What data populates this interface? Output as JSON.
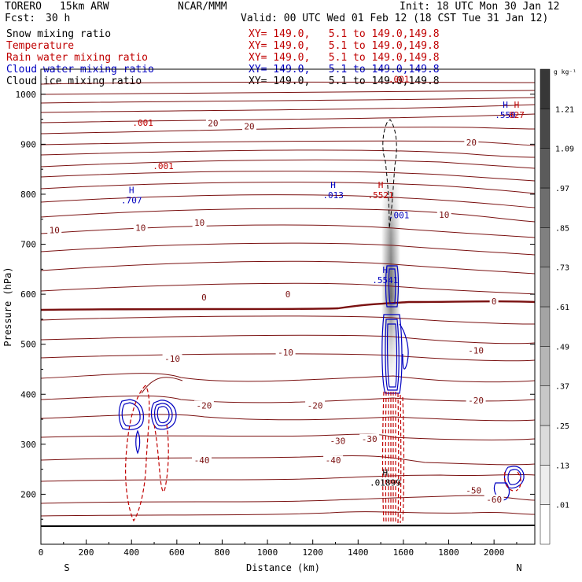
{
  "header": {
    "model": "TORERO",
    "resolution": "15km ARW",
    "org": "NCAR/MMM",
    "init": "Init: 18 UTC Mon 30 Jan 12",
    "fcst_label": "Fcst:",
    "fcst_value": "30 h",
    "valid": "Valid: 00 UTC Wed 01 Feb 12 (18 CST Tue 31 Jan 12)"
  },
  "fields": [
    {
      "name": "Snow mixing ratio",
      "color": "#000000",
      "xy": "XY= 149.0,   5.1 to 149.0,149.8"
    },
    {
      "name": "Temperature",
      "color": "#c00000",
      "xy": "XY= 149.0,   5.1 to 149.0,149.8"
    },
    {
      "name": "Rain water mixing ratio",
      "color": "#c00000",
      "xy": "XY= 149.0,   5.1 to 149.0,149.8"
    },
    {
      "name": "Cloud water mixing ratio",
      "color": "#0000c0",
      "xy": "XY= 149.0,   5.1 to 149.0,149.8"
    },
    {
      "name": "Cloud ice mixing ratio",
      "color": "#000000",
      "xy": "XY= 149.0,   5.1 to 149.0,149.8"
    }
  ],
  "chart_data": {
    "type": "cross-section",
    "xlabel": "Distance (km)",
    "ylabel": "Pressure (hPa)",
    "xlim": [
      0,
      2180
    ],
    "ylim": [
      1050,
      100
    ],
    "x_ticks": [
      0,
      200,
      400,
      600,
      800,
      1000,
      1200,
      1400,
      1600,
      1800,
      2000
    ],
    "y_ticks": [
      200,
      300,
      400,
      500,
      600,
      700,
      800,
      900,
      1000
    ],
    "x_end_labels": {
      "left": "S",
      "right": "N"
    },
    "colorbar": {
      "units": "g kg⁻¹",
      "levels": [
        0.01,
        0.13,
        0.25,
        0.37,
        0.49,
        0.61,
        0.73,
        0.85,
        0.97,
        1.09,
        1.21
      ],
      "labels": [
        ".01",
        ".13",
        ".25",
        ".37",
        ".49",
        ".61",
        ".73",
        ".85",
        ".97",
        "1.09",
        "1.21"
      ]
    },
    "temperature_labels": [
      {
        "text": "-60",
        "x": 2000,
        "p": 190
      },
      {
        "text": "-50",
        "x": 1910,
        "p": 208
      },
      {
        "text": "-40",
        "x": 710,
        "p": 268
      },
      {
        "text": "-40",
        "x": 1290,
        "p": 268
      },
      {
        "text": "-30",
        "x": 1310,
        "p": 307
      },
      {
        "text": "-30",
        "x": 1450,
        "p": 311
      },
      {
        "text": "-20",
        "x": 720,
        "p": 378
      },
      {
        "text": "-20",
        "x": 1210,
        "p": 378
      },
      {
        "text": "-20",
        "x": 1920,
        "p": 388
      },
      {
        "text": "-10",
        "x": 580,
        "p": 471
      },
      {
        "text": "-10",
        "x": 1080,
        "p": 484
      },
      {
        "text": "-10",
        "x": 1920,
        "p": 488
      },
      {
        "text": "0",
        "x": 720,
        "p": 594
      },
      {
        "text": "0",
        "x": 1090,
        "p": 600
      },
      {
        "text": "0",
        "x": 2000,
        "p": 586
      },
      {
        "text": "10",
        "x": 60,
        "p": 728
      },
      {
        "text": "10",
        "x": 440,
        "p": 733
      },
      {
        "text": "10",
        "x": 700,
        "p": 743
      },
      {
        "text": "10",
        "x": 1780,
        "p": 759
      },
      {
        "text": "20",
        "x": 760,
        "p": 942
      },
      {
        "text": "20",
        "x": 920,
        "p": 936
      },
      {
        "text": "20",
        "x": 1900,
        "p": 904
      }
    ],
    "max_labels": [
      {
        "h": "H",
        "value": ".01899",
        "x": 1520,
        "p": 225,
        "color": "#000000"
      },
      {
        "h": "H",
        "value": ".5541",
        "x": 1520,
        "p": 630,
        "color": "#0000c0"
      },
      {
        "h": "H",
        "value": ".707",
        "x": 400,
        "p": 790,
        "color": "#0000c0"
      },
      {
        "h": "H",
        "value": ".013",
        "x": 1290,
        "p": 800,
        "color": "#0000c0"
      },
      {
        "h": "H",
        "value": ".5521",
        "x": 1500,
        "p": 800,
        "color": "#c00000"
      },
      {
        "h": "",
        "value": ".001",
        "x": 1580,
        "p": 760,
        "color": "#0000c0"
      },
      {
        "h": "",
        "value": ".001",
        "x": 540,
        "p": 858,
        "color": "#c00000"
      },
      {
        "h": "",
        "value": ".001",
        "x": 450,
        "p": 945,
        "color": "#c00000"
      },
      {
        "h": "",
        "value": ".001",
        "x": 1580,
        "p": 1032,
        "color": "#c00000"
      },
      {
        "h": "H",
        "value": ".550",
        "x": 2050,
        "p": 960,
        "color": "#0000c0"
      },
      {
        "h": "H",
        "value": "827",
        "x": 2100,
        "p": 960,
        "color": "#c00000"
      }
    ]
  }
}
